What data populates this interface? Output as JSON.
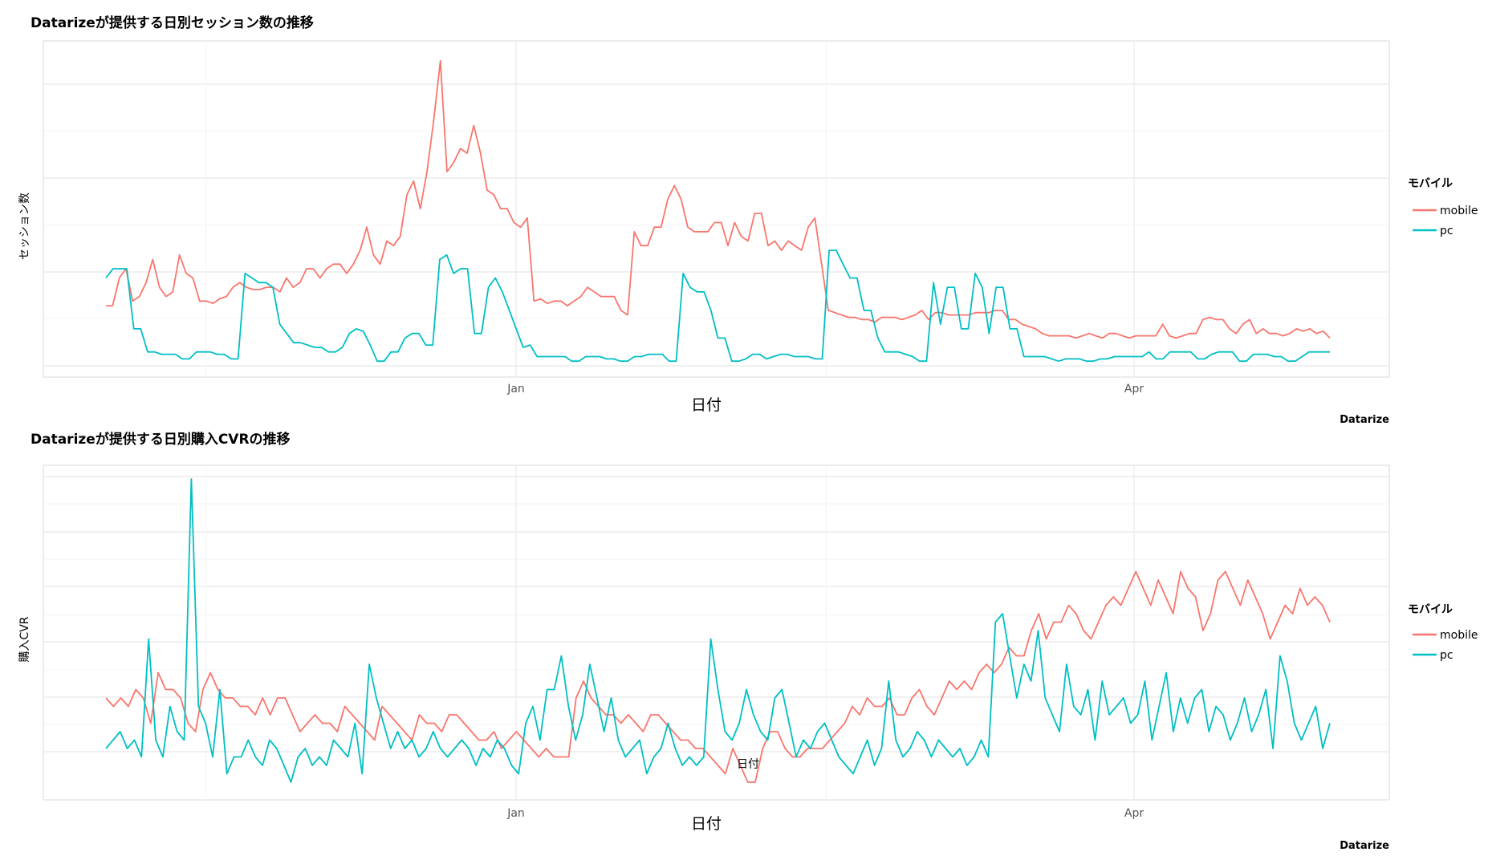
{
  "chart_data": [
    {
      "type": "line",
      "title": "Datarizeが提供する日別セッション数の推移",
      "xlabel": "日付",
      "ylabel": "セッション数",
      "caption": "Datarize",
      "x_ticks": [
        "Jan",
        "Apr"
      ],
      "y_tick_labels": "hidden",
      "grid": true,
      "legend": {
        "title": "モバイル",
        "placement": "right",
        "entries": [
          "mobile",
          "pc"
        ]
      },
      "colors": {
        "mobile": "#f8766d",
        "pc": "#00bfc4"
      },
      "series": [
        {
          "name": "mobile",
          "color": "#f8766d",
          "values": [
            13,
            13,
            19,
            21,
            14,
            15,
            18,
            23,
            17,
            15,
            16,
            24,
            20,
            19,
            14,
            14,
            13.5,
            14.5,
            15,
            17,
            18,
            17,
            16.5,
            16.5,
            17,
            17,
            16,
            19,
            17,
            18,
            21,
            21,
            19,
            21,
            22,
            22,
            20,
            22,
            25,
            30,
            24,
            22,
            27,
            26,
            28,
            37,
            40,
            34,
            42,
            53,
            66,
            42,
            44,
            47,
            46,
            52,
            46,
            38,
            37,
            34,
            34,
            31,
            30,
            32,
            14,
            14.5,
            13.5,
            14,
            14,
            13,
            14,
            15,
            17,
            16,
            15,
            15,
            15,
            12,
            11,
            29,
            26,
            26,
            30,
            30,
            36,
            39,
            36,
            30,
            29,
            29,
            29,
            31,
            31,
            26,
            31,
            28,
            27,
            33,
            33,
            26,
            27,
            25,
            27,
            26,
            25,
            30,
            32,
            22,
            12,
            11.5,
            11,
            10.5,
            10.5,
            10,
            10,
            9.5,
            10.5,
            10.5,
            10.5,
            10,
            10.5,
            11,
            12,
            10,
            11.5,
            11.5,
            11,
            11,
            11,
            11,
            11.5,
            11.5,
            11.5,
            12,
            12,
            10,
            10,
            9,
            8.5,
            8,
            7,
            6.5,
            6.5,
            6.5,
            6.5,
            6,
            6.5,
            7,
            6.5,
            6,
            7,
            7,
            6.5,
            6,
            6.5,
            6.5,
            6.5,
            6.5,
            9,
            6.5,
            6,
            6.5,
            7,
            7,
            10,
            10.5,
            10,
            10,
            8,
            7,
            9,
            10,
            7,
            8,
            7,
            7,
            6.5,
            7,
            8,
            7.5,
            8,
            7,
            7.5,
            6
          ]
        },
        {
          "name": "pc",
          "color": "#00bfc4",
          "values": [
            19,
            21,
            21,
            21,
            8,
            8,
            3,
            3,
            2.5,
            2.5,
            2.5,
            1.5,
            1.5,
            3,
            3,
            3,
            2.5,
            2.5,
            1.5,
            1.5,
            20,
            19,
            18,
            18,
            17,
            9,
            7,
            5,
            5,
            4.5,
            4,
            4,
            3,
            3,
            4,
            7,
            8,
            7.5,
            4.5,
            1,
            1,
            3,
            3,
            6,
            7,
            7,
            4.5,
            4.5,
            23,
            24,
            20,
            21,
            21,
            7,
            7,
            17,
            19,
            16,
            12,
            8,
            4,
            4.5,
            2,
            2,
            2,
            2,
            2,
            1,
            1,
            2,
            2,
            2,
            1.5,
            1.5,
            1,
            1,
            2,
            2,
            2.5,
            2.5,
            2.5,
            1,
            1,
            20,
            17,
            16,
            16,
            12,
            6,
            6,
            1,
            1,
            1.5,
            2.5,
            2.5,
            1.5,
            2,
            2.5,
            2.5,
            2,
            2,
            2,
            1.5,
            1.5,
            25,
            25,
            22,
            19,
            19,
            12,
            12,
            6,
            3,
            3,
            3,
            2.5,
            2,
            1,
            1,
            18,
            9,
            17,
            17,
            8,
            8,
            20,
            17,
            7,
            17,
            17,
            8,
            8,
            2,
            2,
            2,
            2,
            1.5,
            1,
            1.5,
            1.5,
            1.5,
            1,
            1,
            1.5,
            1.5,
            2,
            2,
            2,
            2,
            2,
            3,
            1.5,
            1.5,
            3,
            3,
            3,
            3,
            1.5,
            1.5,
            2.5,
            3,
            3,
            3,
            1,
            1,
            2.5,
            2.5,
            2.5,
            2,
            2,
            1,
            1,
            2,
            3,
            3,
            3,
            3
          ]
        }
      ]
    },
    {
      "type": "line",
      "title": "Datarizeが提供する日別購入CVRの推移",
      "xlabel": "日付",
      "ylabel": "購入CVR",
      "caption": "Datarize",
      "annotation": "日付",
      "x_ticks": [
        "Jan",
        "Apr"
      ],
      "y_tick_labels": "hidden",
      "grid": true,
      "legend": {
        "title": "モバイル",
        "placement": "right",
        "entries": [
          "mobile",
          "pc"
        ]
      },
      "colors": {
        "mobile": "#f8766d",
        "pc": "#00bfc4"
      },
      "series": [
        {
          "name": "mobile",
          "color": "#f8766d",
          "values": [
            3.2,
            3.1,
            3.2,
            3.1,
            3.3,
            3.2,
            2.9,
            3.5,
            3.3,
            3.3,
            3.2,
            2.9,
            2.8,
            3.3,
            3.5,
            3.3,
            3.2,
            3.2,
            3.1,
            3.1,
            3.0,
            3.2,
            3.0,
            3.2,
            3.2,
            3.0,
            2.8,
            2.9,
            3.0,
            2.9,
            2.9,
            2.8,
            3.1,
            3.0,
            2.9,
            2.8,
            2.7,
            3.1,
            3.0,
            2.9,
            2.8,
            2.7,
            3.0,
            2.9,
            2.9,
            2.8,
            3.0,
            3.0,
            2.9,
            2.8,
            2.7,
            2.7,
            2.8,
            2.6,
            2.7,
            2.8,
            2.7,
            2.6,
            2.5,
            2.6,
            2.5,
            2.5,
            2.5,
            3.2,
            3.4,
            3.2,
            3.1,
            3.0,
            3.0,
            2.9,
            3.0,
            2.9,
            2.8,
            3.0,
            3.0,
            2.9,
            2.8,
            2.7,
            2.7,
            2.6,
            2.6,
            2.5,
            2.4,
            2.3,
            2.6,
            2.4,
            2.2,
            2.2,
            2.6,
            2.8,
            2.8,
            2.6,
            2.5,
            2.5,
            2.6,
            2.6,
            2.6,
            2.7,
            2.8,
            2.9,
            3.1,
            3.0,
            3.2,
            3.1,
            3.1,
            3.2,
            3.0,
            3.0,
            3.2,
            3.3,
            3.1,
            3.0,
            3.2,
            3.4,
            3.3,
            3.4,
            3.3,
            3.5,
            3.6,
            3.5,
            3.6,
            3.8,
            3.7,
            3.7,
            4.0,
            4.2,
            3.9,
            4.1,
            4.1,
            4.3,
            4.2,
            4.0,
            3.9,
            4.1,
            4.3,
            4.4,
            4.3,
            4.5,
            4.7,
            4.5,
            4.3,
            4.6,
            4.4,
            4.2,
            4.7,
            4.5,
            4.4,
            4.0,
            4.2,
            4.6,
            4.7,
            4.5,
            4.3,
            4.6,
            4.4,
            4.2,
            3.9,
            4.1,
            4.3,
            4.2,
            4.5,
            4.3,
            4.4,
            4.3,
            4.1
          ]
        },
        {
          "name": "pc",
          "color": "#00bfc4",
          "values": [
            2.6,
            2.7,
            2.8,
            2.6,
            2.7,
            2.5,
            3.9,
            2.7,
            2.5,
            3.1,
            2.8,
            2.7,
            5.8,
            3.1,
            2.9,
            2.5,
            3.3,
            2.3,
            2.5,
            2.5,
            2.7,
            2.5,
            2.4,
            2.7,
            2.6,
            2.4,
            2.2,
            2.5,
            2.6,
            2.4,
            2.5,
            2.4,
            2.7,
            2.6,
            2.5,
            2.9,
            2.3,
            3.6,
            3.2,
            2.9,
            2.6,
            2.8,
            2.6,
            2.7,
            2.5,
            2.6,
            2.8,
            2.6,
            2.5,
            2.6,
            2.7,
            2.6,
            2.4,
            2.6,
            2.5,
            2.7,
            2.6,
            2.4,
            2.3,
            2.9,
            3.1,
            2.7,
            3.3,
            3.3,
            3.7,
            3.1,
            2.7,
            3.0,
            3.6,
            3.2,
            2.8,
            3.2,
            2.7,
            2.5,
            2.6,
            2.7,
            2.3,
            2.5,
            2.6,
            2.9,
            2.6,
            2.4,
            2.5,
            2.4,
            2.5,
            3.9,
            3.3,
            2.8,
            2.7,
            2.9,
            3.3,
            3.0,
            2.8,
            2.7,
            3.2,
            3.3,
            2.9,
            2.5,
            2.7,
            2.6,
            2.8,
            2.9,
            2.7,
            2.5,
            2.4,
            2.3,
            2.5,
            2.7,
            2.4,
            2.6,
            3.4,
            2.7,
            2.5,
            2.6,
            2.8,
            2.7,
            2.5,
            2.7,
            2.6,
            2.5,
            2.6,
            2.4,
            2.5,
            2.7,
            2.5,
            4.1,
            4.2,
            3.7,
            3.2,
            3.6,
            3.4,
            4.0,
            3.2,
            3.0,
            2.8,
            3.6,
            3.1,
            3.0,
            3.3,
            2.7,
            3.4,
            3.0,
            3.1,
            3.2,
            2.9,
            3.0,
            3.4,
            2.7,
            3.1,
            3.5,
            2.8,
            3.2,
            2.9,
            3.2,
            3.3,
            2.8,
            3.1,
            3.0,
            2.7,
            2.9,
            3.2,
            2.8,
            3.0,
            3.3,
            2.6,
            3.7,
            3.4,
            2.9,
            2.7,
            2.9,
            3.1,
            2.6,
            2.9
          ]
        }
      ]
    }
  ]
}
